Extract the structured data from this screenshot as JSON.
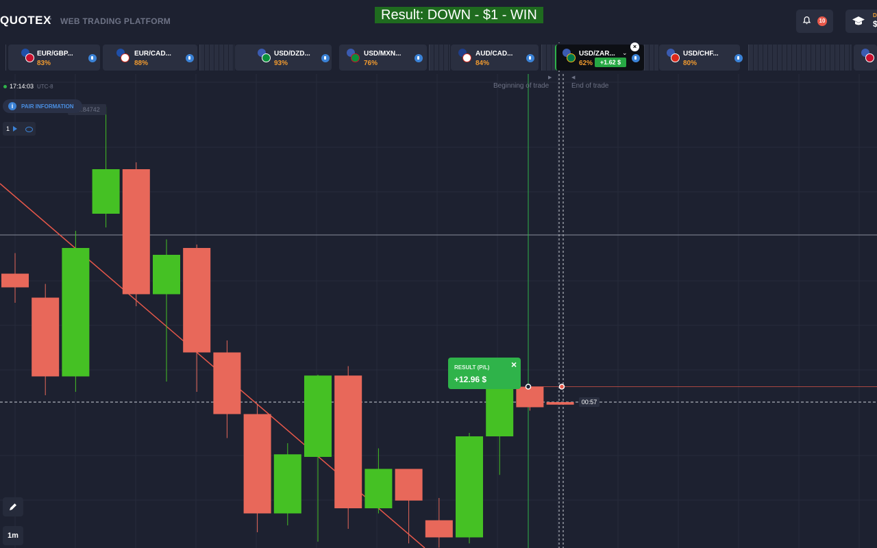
{
  "header": {
    "brand": "QUOTEX",
    "subtitle": "WEB TRADING PLATFORM",
    "result_banner": "Result: DOWN - $1 - WIN",
    "notifications_count": "10",
    "account_label": "D",
    "account_balance": "$"
  },
  "assets": [
    {
      "name": "EUR/GBP...",
      "payout": "83%"
    },
    {
      "name": "EUR/CAD...",
      "payout": "88%"
    },
    {
      "name": "USD/DZD...",
      "payout": "93%"
    },
    {
      "name": "USD/MXN...",
      "payout": "76%"
    },
    {
      "name": "AUD/CAD...",
      "payout": "84%"
    },
    {
      "name": "USD/ZAR...",
      "payout": "62%",
      "active": true,
      "profit": "+1.62 $"
    },
    {
      "name": "USD/CHF...",
      "payout": "80%"
    }
  ],
  "chart": {
    "clock": "17:14:03",
    "timezone": "UTC-8",
    "pair_info": "PAIR INFORMATION",
    "price_tag": "14.84742",
    "indicator_count": "1",
    "beginning_label": "Beginning of trade",
    "end_label": "End of trade",
    "result_label": "RESULT (P/L)",
    "result_value": "+12.96 $",
    "timer": "00:57",
    "timeframe": "1m"
  },
  "chart_data": {
    "type": "candlestick",
    "candles": [
      {
        "o": 15,
        "c": 13.4,
        "h": 17.4,
        "l": 11.6
      },
      {
        "o": 12.2,
        "c": 3.0,
        "h": 13.8,
        "l": 0.8
      },
      {
        "o": 3.0,
        "c": 18.0,
        "h": 20.0,
        "l": 1.2
      },
      {
        "o": 22.0,
        "c": 27.2,
        "h": 34.5,
        "l": 20.4
      },
      {
        "o": 27.2,
        "c": 12.6,
        "h": 28.0,
        "l": 11.2
      },
      {
        "o": 12.6,
        "c": 17.2,
        "h": 19.0,
        "l": 2.4
      },
      {
        "o": 18.0,
        "c": 5.8,
        "h": 18.4,
        "l": 1.2
      },
      {
        "o": 5.8,
        "c": -1.4,
        "h": 7.2,
        "l": -4.2
      },
      {
        "o": -1.4,
        "c": -13.0,
        "h": -0.2,
        "l": -15.2
      },
      {
        "o": -13.0,
        "c": -6.1,
        "h": -4.8,
        "l": -14.4
      },
      {
        "o": -6.4,
        "c": 3.1,
        "h": 3.2,
        "l": -16.3
      },
      {
        "o": 3.1,
        "c": -12.4,
        "h": 4.2,
        "l": -14.8
      },
      {
        "o": -12.4,
        "c": -7.8,
        "h": -5.4,
        "l": -13.0
      },
      {
        "o": -7.8,
        "c": -11.5,
        "h": -7.8,
        "l": -16.5
      },
      {
        "o": -13.8,
        "c": -15.8,
        "h": -11.2,
        "l": -17.0
      },
      {
        "o": -15.8,
        "c": -4.0,
        "h": -3.6,
        "l": -16.5
      },
      {
        "o": -4.0,
        "c": 1.8,
        "h": 2.4,
        "l": -8.5
      },
      {
        "o": 1.8,
        "c": -0.6,
        "h": 2.0,
        "l": -1.0
      },
      {
        "o": 0,
        "c": -0.3,
        "h": 0,
        "l": -0.3
      }
    ],
    "current_price_level": 0,
    "trade_open_level": 1.8,
    "price_range": [
      -17,
      38
    ]
  }
}
